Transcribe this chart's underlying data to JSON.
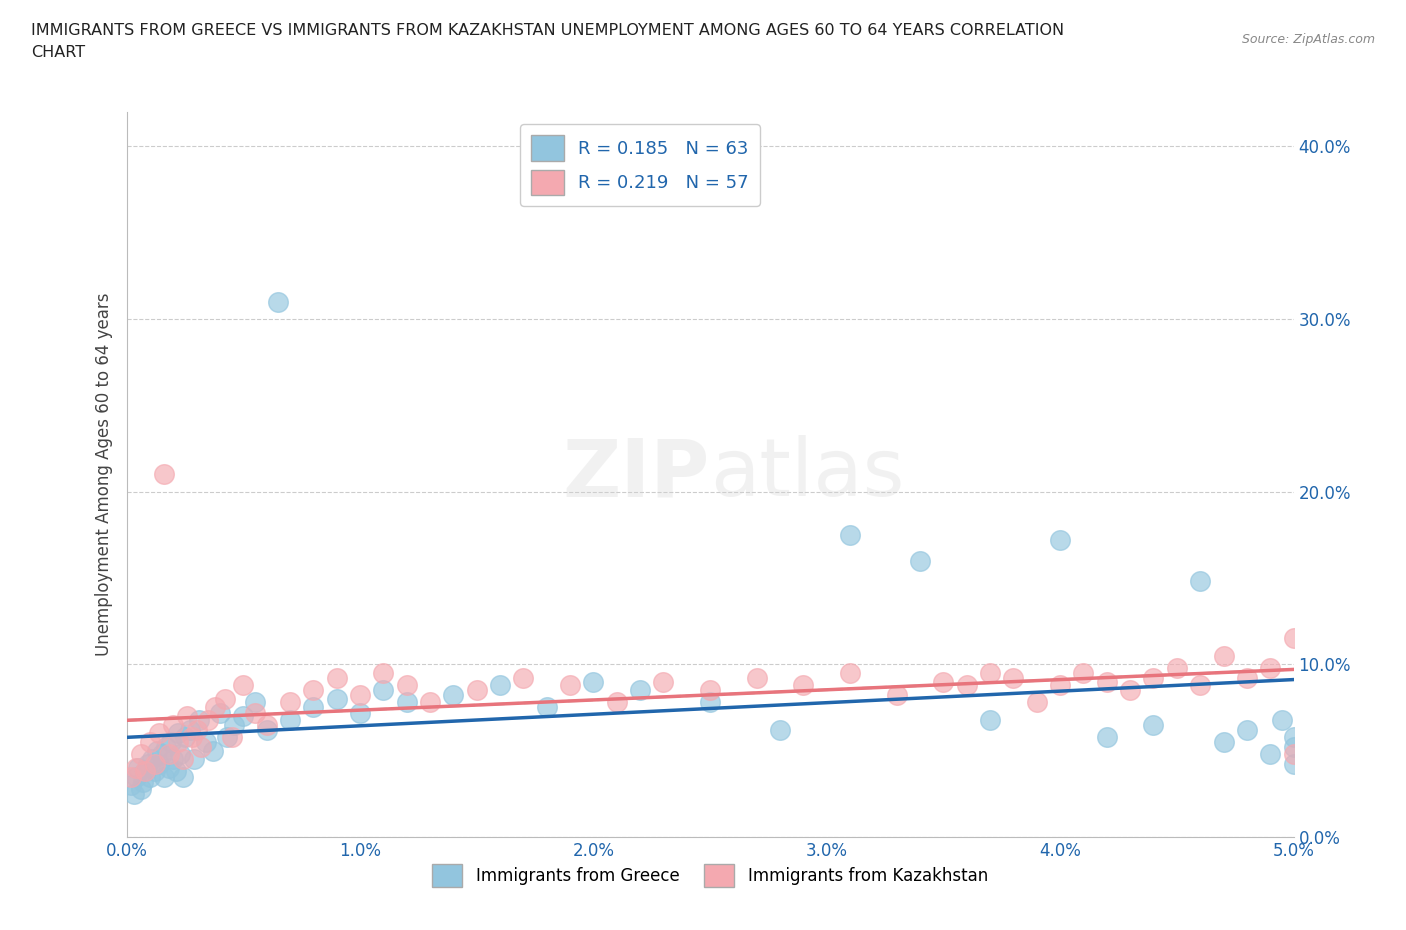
{
  "title_line1": "IMMIGRANTS FROM GREECE VS IMMIGRANTS FROM KAZAKHSTAN UNEMPLOYMENT AMONG AGES 60 TO 64 YEARS CORRELATION",
  "title_line2": "CHART",
  "source": "Source: ZipAtlas.com",
  "ylabel": "Unemployment Among Ages 60 to 64 years",
  "xlim": [
    0.0,
    0.05
  ],
  "ylim": [
    0.0,
    0.42
  ],
  "xticks": [
    0.0,
    0.01,
    0.02,
    0.03,
    0.04,
    0.05
  ],
  "xtick_labels": [
    "0.0%",
    "1.0%",
    "2.0%",
    "3.0%",
    "4.0%",
    "5.0%"
  ],
  "yticks": [
    0.0,
    0.1,
    0.2,
    0.3,
    0.4
  ],
  "ytick_labels": [
    "0.0%",
    "10.0%",
    "20.0%",
    "30.0%",
    "40.0%"
  ],
  "greece_color": "#92c5de",
  "kazakhstan_color": "#f4a9b0",
  "greece_line_color": "#2166ac",
  "kazakhstan_line_color": "#e8747c",
  "kazakhstan_dash_color": "#cccccc",
  "greece_R": 0.185,
  "greece_N": 63,
  "kazakhstan_R": 0.219,
  "kazakhstan_N": 57,
  "legend_label_greece": "Immigrants from Greece",
  "legend_label_kazakhstan": "Immigrants from Kazakhstan",
  "watermark": "ZIPatlas",
  "greece_x": [
    0.0002,
    0.0003,
    0.0004,
    0.0005,
    0.0006,
    0.0007,
    0.0008,
    0.0009,
    0.001,
    0.0011,
    0.0012,
    0.0013,
    0.0014,
    0.0015,
    0.0016,
    0.0017,
    0.0018,
    0.0019,
    0.002,
    0.0021,
    0.0022,
    0.0023,
    0.0024,
    0.0025,
    0.0027,
    0.0029,
    0.0031,
    0.0034,
    0.0037,
    0.004,
    0.0043,
    0.0046,
    0.005,
    0.0055,
    0.006,
    0.0065,
    0.007,
    0.008,
    0.009,
    0.01,
    0.011,
    0.012,
    0.014,
    0.016,
    0.018,
    0.02,
    0.022,
    0.025,
    0.028,
    0.031,
    0.034,
    0.037,
    0.04,
    0.042,
    0.044,
    0.046,
    0.047,
    0.048,
    0.049,
    0.0495,
    0.05,
    0.05,
    0.05
  ],
  "greece_y": [
    0.03,
    0.025,
    0.035,
    0.04,
    0.028,
    0.032,
    0.038,
    0.042,
    0.035,
    0.045,
    0.038,
    0.05,
    0.042,
    0.048,
    0.035,
    0.052,
    0.04,
    0.055,
    0.045,
    0.038,
    0.06,
    0.048,
    0.035,
    0.058,
    0.062,
    0.045,
    0.068,
    0.055,
    0.05,
    0.072,
    0.058,
    0.065,
    0.07,
    0.078,
    0.062,
    0.31,
    0.068,
    0.075,
    0.08,
    0.072,
    0.085,
    0.078,
    0.082,
    0.088,
    0.075,
    0.09,
    0.085,
    0.078,
    0.062,
    0.175,
    0.16,
    0.068,
    0.172,
    0.058,
    0.065,
    0.148,
    0.055,
    0.062,
    0.048,
    0.068,
    0.058,
    0.042,
    0.052
  ],
  "kazakhstan_x": [
    0.0002,
    0.0004,
    0.0006,
    0.0008,
    0.001,
    0.0012,
    0.0014,
    0.0016,
    0.0018,
    0.002,
    0.0022,
    0.0024,
    0.0026,
    0.0028,
    0.003,
    0.0032,
    0.0035,
    0.0038,
    0.0042,
    0.0045,
    0.005,
    0.0055,
    0.006,
    0.007,
    0.008,
    0.009,
    0.01,
    0.011,
    0.012,
    0.013,
    0.015,
    0.017,
    0.019,
    0.021,
    0.023,
    0.025,
    0.027,
    0.029,
    0.031,
    0.033,
    0.035,
    0.036,
    0.037,
    0.038,
    0.039,
    0.04,
    0.041,
    0.042,
    0.043,
    0.044,
    0.045,
    0.046,
    0.047,
    0.048,
    0.049,
    0.05,
    0.05
  ],
  "kazakhstan_y": [
    0.035,
    0.04,
    0.048,
    0.038,
    0.055,
    0.042,
    0.06,
    0.21,
    0.048,
    0.065,
    0.055,
    0.045,
    0.07,
    0.058,
    0.062,
    0.052,
    0.068,
    0.075,
    0.08,
    0.058,
    0.088,
    0.072,
    0.065,
    0.078,
    0.085,
    0.092,
    0.082,
    0.095,
    0.088,
    0.078,
    0.085,
    0.092,
    0.088,
    0.078,
    0.09,
    0.085,
    0.092,
    0.088,
    0.095,
    0.082,
    0.09,
    0.088,
    0.095,
    0.092,
    0.078,
    0.088,
    0.095,
    0.09,
    0.085,
    0.092,
    0.098,
    0.088,
    0.105,
    0.092,
    0.098,
    0.115,
    0.048
  ]
}
